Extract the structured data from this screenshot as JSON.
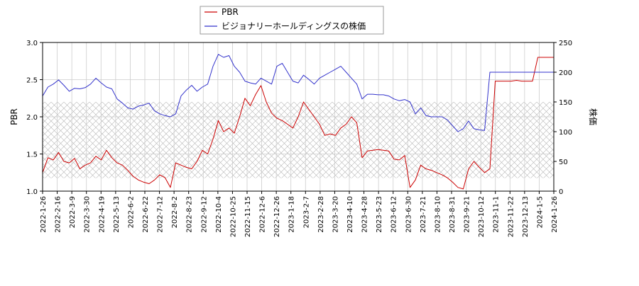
{
  "chart_data": {
    "type": "line",
    "xlabel": "",
    "ylabel_left": "PBR",
    "ylabel_right": "株価",
    "ylim_left": [
      1.0,
      3.0
    ],
    "ylim_right": [
      0,
      250
    ],
    "yticks_left": [
      "1.0",
      "1.5",
      "2.0",
      "2.5",
      "3.0"
    ],
    "yticks_right": [
      "0",
      "50",
      "100",
      "150",
      "200",
      "250"
    ],
    "x_ticks": [
      "2022-1-26",
      "2022-2-16",
      "2022-3-9",
      "2022-3-30",
      "2022-4-19",
      "2022-5-13",
      "2022-6-2",
      "2022-6-22",
      "2022-7-12",
      "2022-8-2",
      "2022-8-23",
      "2022-9-12",
      "2022-10-4",
      "2022-10-25",
      "2022-11-15",
      "2022-12-6",
      "2022-12-26",
      "2023-1-18",
      "2023-2-7",
      "2023-2-28",
      "2023-3-20",
      "2023-4-10",
      "2023-4-28",
      "2023-5-23",
      "2023-6-12",
      "2023-6-30",
      "2023-7-21",
      "2023-8-10",
      "2023-8-31",
      "2023-9-21",
      "2023-10-12",
      "2023-11-1",
      "2023-11-22",
      "2023-12-13",
      "2024-1-5",
      "2024-1-26"
    ],
    "legend_position": "top-center",
    "grid": true,
    "hatched_band_right_axis": [
      22,
      150
    ],
    "series": [
      {
        "name": "PBR",
        "axis": "left",
        "color": "#cc0000",
        "values": [
          1.25,
          1.45,
          1.42,
          1.52,
          1.4,
          1.38,
          1.44,
          1.3,
          1.35,
          1.38,
          1.47,
          1.42,
          1.55,
          1.45,
          1.38,
          1.35,
          1.28,
          1.2,
          1.15,
          1.12,
          1.1,
          1.15,
          1.22,
          1.18,
          1.05,
          1.38,
          1.35,
          1.32,
          1.3,
          1.4,
          1.55,
          1.5,
          1.7,
          1.95,
          1.8,
          1.85,
          1.78,
          2.0,
          2.25,
          2.15,
          2.3,
          2.42,
          2.2,
          2.05,
          1.98,
          1.95,
          1.9,
          1.85,
          2.0,
          2.2,
          2.1,
          2.0,
          1.9,
          1.75,
          1.77,
          1.75,
          1.85,
          1.9,
          2.0,
          1.92,
          1.45,
          1.54,
          1.55,
          1.56,
          1.55,
          1.54,
          1.43,
          1.42,
          1.48,
          1.05,
          1.15,
          1.35,
          1.3,
          1.28,
          1.25,
          1.22,
          1.18,
          1.12,
          1.05,
          1.03,
          1.3,
          1.4,
          1.32,
          1.25,
          1.3,
          2.48,
          2.48,
          2.48,
          2.48,
          2.49,
          2.48,
          2.48,
          2.48,
          2.8,
          2.8,
          2.8,
          2.8
        ]
      },
      {
        "name": "ビジョナリーホールディングスの株価",
        "axis": "right",
        "color": "#3333cc",
        "values": [
          160,
          175,
          180,
          187,
          178,
          168,
          173,
          172,
          174,
          180,
          190,
          182,
          175,
          172,
          155,
          148,
          140,
          138,
          143,
          145,
          148,
          135,
          130,
          127,
          125,
          130,
          160,
          170,
          178,
          168,
          175,
          180,
          210,
          230,
          225,
          228,
          210,
          200,
          185,
          182,
          180,
          190,
          185,
          180,
          210,
          215,
          200,
          185,
          182,
          195,
          188,
          180,
          190,
          195,
          200,
          205,
          210,
          200,
          190,
          180,
          155,
          163,
          163,
          162,
          162,
          160,
          155,
          152,
          154,
          150,
          130,
          140,
          127,
          125,
          125,
          125,
          120,
          110,
          100,
          105,
          118,
          105,
          103,
          102,
          200,
          200,
          200,
          200,
          200,
          200,
          200,
          200,
          200,
          200,
          200,
          200,
          200
        ]
      }
    ]
  }
}
